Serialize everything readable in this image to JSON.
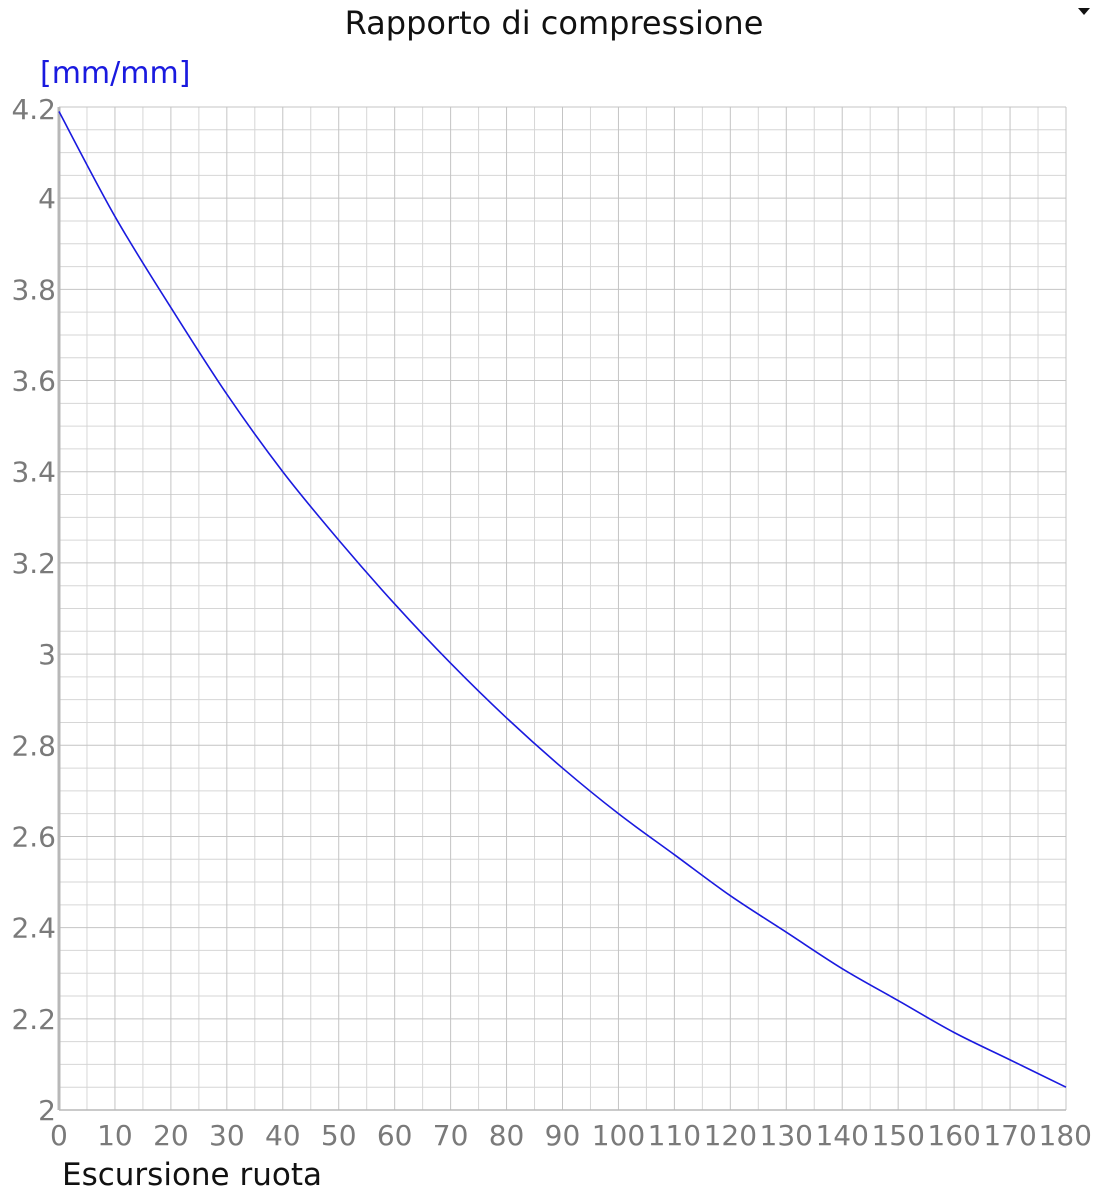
{
  "chart_data": {
    "type": "line",
    "title": "Rapporto di compressione",
    "ylabel": "[mm/mm]",
    "xlabel": "Escursione ruota",
    "xlim": [
      0,
      180
    ],
    "ylim": [
      2,
      4.2
    ],
    "x_ticks": [
      "0",
      "10",
      "20",
      "30",
      "40",
      "50",
      "60",
      "70",
      "80",
      "90",
      "100",
      "110",
      "120",
      "130",
      "140",
      "150",
      "160",
      "170",
      "180"
    ],
    "y_ticks": [
      "2",
      "2.2",
      "2.4",
      "2.6",
      "2.8",
      "3",
      "3.2",
      "3.4",
      "3.6",
      "3.8",
      "4",
      "4.2"
    ],
    "grid": true,
    "series": [
      {
        "color": "#1a1adf",
        "x": [
          0,
          10,
          20,
          30,
          40,
          50,
          60,
          70,
          80,
          90,
          100,
          110,
          120,
          130,
          140,
          150,
          160,
          170,
          180
        ],
        "y": [
          4.19,
          3.96,
          3.76,
          3.57,
          3.4,
          3.25,
          3.11,
          2.98,
          2.86,
          2.75,
          2.65,
          2.56,
          2.47,
          2.39,
          2.31,
          2.24,
          2.17,
          2.11,
          2.05
        ]
      }
    ]
  },
  "controls": {
    "dropdown_icon": "chevron-down-icon"
  }
}
